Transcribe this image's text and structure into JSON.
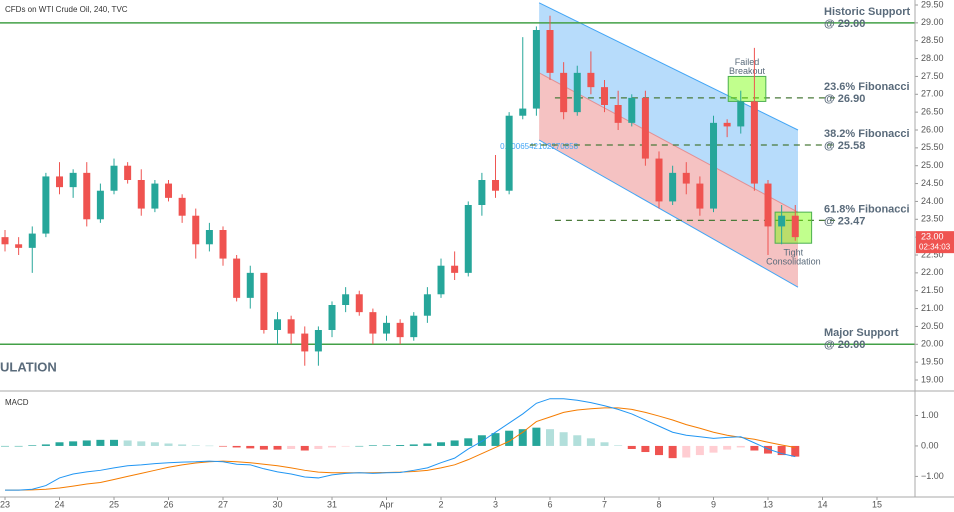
{
  "chart_data": [
    {
      "type": "candlestick",
      "title": "CFDs on WTI Crude Oil, 240, TVC",
      "x": [
        0,
        0.25,
        0.5,
        0.75,
        1,
        1.25,
        1.5,
        1.75,
        2,
        2.25,
        2.5,
        2.75,
        3,
        3.25,
        3.5,
        3.75,
        4,
        4.25,
        4.5,
        4.75,
        5,
        5.25,
        5.5,
        5.75,
        6,
        6.25,
        6.5,
        6.75,
        7,
        7.25,
        7.5,
        7.75,
        8,
        8.25,
        8.5,
        8.75,
        9,
        9.25,
        9.5,
        9.75,
        10,
        10.25,
        10.5,
        10.75,
        11,
        11.25,
        11.5,
        11.75,
        12,
        12.25,
        12.5,
        12.75,
        13,
        13.25,
        13.5,
        13.75,
        14,
        14.25,
        14.5
      ],
      "open": [
        23.0,
        22.8,
        22.7,
        23.1,
        24.7,
        24.4,
        24.8,
        23.5,
        24.3,
        25.0,
        24.6,
        23.8,
        24.5,
        24.1,
        23.6,
        22.8,
        23.2,
        22.4,
        21.3,
        22.0,
        20.4,
        20.7,
        20.3,
        19.8,
        20.4,
        21.1,
        21.4,
        20.9,
        20.3,
        20.6,
        20.2,
        20.8,
        21.4,
        22.2,
        22.0,
        23.9,
        24.6,
        24.3,
        26.4,
        26.6,
        28.8,
        27.6,
        26.5,
        27.6,
        27.2,
        26.7,
        26.2,
        26.9,
        25.2,
        24.0,
        24.8,
        24.5,
        23.8,
        26.2,
        26.1,
        26.8,
        24.5,
        23.3,
        23.6
      ],
      "high": [
        23.2,
        23.0,
        23.3,
        24.8,
        25.1,
        24.9,
        25.1,
        24.5,
        25.2,
        25.1,
        24.9,
        24.6,
        24.6,
        24.2,
        23.8,
        23.4,
        23.3,
        22.5,
        22.2,
        22.0,
        20.9,
        20.8,
        20.5,
        20.5,
        21.2,
        21.6,
        21.5,
        21.0,
        20.8,
        20.7,
        20.9,
        21.6,
        22.4,
        22.6,
        24.0,
        24.8,
        25.3,
        26.5,
        28.6,
        28.9,
        29.2,
        27.9,
        27.8,
        28.2,
        27.4,
        27.1,
        27.0,
        27.1,
        25.4,
        25.0,
        25.1,
        24.7,
        26.4,
        26.3,
        27.1,
        28.3,
        24.6,
        23.9,
        23.9
      ],
      "low": [
        22.6,
        22.5,
        22.0,
        23.0,
        24.2,
        24.1,
        23.3,
        23.4,
        24.2,
        24.5,
        23.6,
        23.7,
        24.0,
        23.4,
        22.4,
        22.6,
        22.2,
        21.2,
        21.0,
        20.3,
        20.0,
        20.0,
        19.4,
        19.4,
        20.2,
        20.9,
        20.8,
        20.0,
        20.1,
        20.0,
        20.1,
        20.6,
        21.3,
        21.8,
        21.9,
        23.6,
        24.1,
        24.2,
        26.3,
        26.4,
        27.4,
        26.3,
        26.4,
        27.0,
        26.5,
        26.0,
        26.1,
        25.0,
        23.8,
        23.9,
        24.2,
        23.6,
        23.7,
        25.8,
        25.9,
        24.3,
        22.5,
        22.8,
        22.9
      ],
      "close": [
        22.8,
        22.7,
        23.1,
        24.7,
        24.4,
        24.8,
        23.5,
        24.3,
        25.0,
        24.6,
        23.8,
        24.5,
        24.1,
        23.6,
        22.8,
        23.2,
        22.4,
        21.3,
        22.0,
        20.4,
        20.7,
        20.3,
        19.8,
        20.4,
        21.1,
        21.4,
        20.9,
        20.3,
        20.6,
        20.2,
        20.8,
        21.4,
        22.2,
        22.0,
        23.9,
        24.6,
        24.3,
        26.4,
        26.6,
        28.8,
        27.6,
        26.5,
        27.6,
        27.2,
        26.7,
        26.2,
        26.9,
        25.2,
        24.0,
        24.8,
        24.5,
        23.8,
        26.2,
        26.1,
        26.8,
        24.5,
        23.3,
        23.6,
        23.0
      ],
      "up_color": "#26a69a",
      "down_color": "#ef5350",
      "xlim": [
        -0.092,
        16.697
      ],
      "xticks": [
        {
          "value": 0,
          "label": "23"
        },
        {
          "value": 1,
          "label": "24"
        },
        {
          "value": 2,
          "label": "25"
        },
        {
          "value": 3,
          "label": "26"
        },
        {
          "value": 4,
          "label": "27"
        },
        {
          "value": 5,
          "label": "30"
        },
        {
          "value": 6,
          "label": "31"
        },
        {
          "value": 7,
          "label": "Apr"
        },
        {
          "value": 8,
          "label": "2"
        },
        {
          "value": 9,
          "label": "3"
        },
        {
          "value": 10,
          "label": "6"
        },
        {
          "value": 11,
          "label": "7"
        },
        {
          "value": 12,
          "label": "8"
        },
        {
          "value": 13,
          "label": "9"
        },
        {
          "value": 14,
          "label": "13"
        },
        {
          "value": 15,
          "label": "14"
        },
        {
          "value": 16,
          "label": "15"
        }
      ],
      "ylim": [
        18.72,
        29.64
      ],
      "yticks": [
        {
          "value": 19,
          "label": "19.00"
        },
        {
          "value": 19.5,
          "label": "19.50"
        },
        {
          "value": 20,
          "label": "20.00"
        },
        {
          "value": 20.5,
          "label": "20.50"
        },
        {
          "value": 21,
          "label": "21.00"
        },
        {
          "value": 21.5,
          "label": "21.50"
        },
        {
          "value": 22,
          "label": "22.00"
        },
        {
          "value": 22.5,
          "label": "22.50"
        },
        {
          "value": 23,
          "label": "23.00"
        },
        {
          "value": 23.5,
          "label": "23.50"
        },
        {
          "value": 24,
          "label": "24.00"
        },
        {
          "value": 24.5,
          "label": "24.50"
        },
        {
          "value": 25,
          "label": "25.00"
        },
        {
          "value": 25.5,
          "label": "25.50"
        },
        {
          "value": 26,
          "label": "26.00"
        },
        {
          "value": 26.5,
          "label": "26.50"
        },
        {
          "value": 27,
          "label": "27.00"
        },
        {
          "value": 27.5,
          "label": "27.50"
        },
        {
          "value": 28,
          "label": "28.00"
        },
        {
          "value": 28.5,
          "label": "28.50"
        },
        {
          "value": 29,
          "label": "29.00"
        },
        {
          "value": 29.5,
          "label": "29.50"
        }
      ],
      "levels": [
        {
          "name": "Historic Support",
          "label": "@ 29.00",
          "value": 29.0,
          "style": "solid",
          "color": "#43a047"
        },
        {
          "name": "23.6% Fibonacci",
          "label": "@ 26.90",
          "value": 26.9,
          "style": "dashed",
          "color": "#4a7a3a",
          "xrange": [
            10.09,
            15.23
          ]
        },
        {
          "name": "38.2% Fibonacci",
          "label": "@ 25.58",
          "value": 25.58,
          "style": "dashed",
          "color": "#4a7a3a",
          "xrange": [
            9.63,
            15.23
          ]
        },
        {
          "name": "61.8% Fibonacci",
          "label": "@ 23.47",
          "value": 23.47,
          "style": "dashed",
          "color": "#4a7a3a",
          "xrange": [
            10.09,
            15.23
          ]
        },
        {
          "name": "Major Support",
          "label": "@ 20.00",
          "value": 20.0,
          "style": "solid",
          "color": "#43a047"
        }
      ],
      "channel": {
        "x": [
          9.8,
          14.55
        ],
        "upper": [
          29.56,
          26.0
        ],
        "middle": [
          27.6,
          23.7
        ],
        "lower": [
          25.72,
          21.6
        ],
        "upper_fill": "rgba(144,202,249,0.65)",
        "lower_fill": "rgba(239,154,154,0.6)",
        "line_color": "#42a5f5",
        "label": "0.0006542102270858"
      },
      "boxes": [
        {
          "x": [
            13.27,
            13.96
          ],
          "y": [
            26.8,
            27.5
          ],
          "label": [
            "Failed",
            "Breakout"
          ],
          "label_side": "above"
        },
        {
          "x": [
            14.13,
            14.8
          ],
          "y": [
            22.83,
            23.7
          ],
          "label": [
            "Tight",
            "Consolidation"
          ],
          "label_side": "below"
        }
      ],
      "price_tag": {
        "value": 23.0,
        "label": "23.00",
        "time": "02:34:03",
        "color": "#ef5350"
      },
      "side_text": "ULATION"
    },
    {
      "type": "macd",
      "title": "MACD",
      "histogram": [
        0,
        0,
        0.02,
        0.05,
        0.12,
        0.15,
        0.18,
        0.2,
        0.2,
        0.18,
        0.15,
        0.12,
        0.08,
        0.05,
        0.02,
        0.01,
        -0.02,
        -0.05,
        -0.08,
        -0.12,
        -0.12,
        -0.1,
        -0.15,
        -0.1,
        -0.05,
        -0.02,
        0,
        0.02,
        0.02,
        0.03,
        0.05,
        0.08,
        0.12,
        0.18,
        0.25,
        0.35,
        0.42,
        0.5,
        0.55,
        0.6,
        0.55,
        0.45,
        0.35,
        0.25,
        0.12,
        0.02,
        -0.1,
        -0.2,
        -0.3,
        -0.4,
        -0.38,
        -0.3,
        -0.22,
        -0.12,
        -0.05,
        -0.15,
        -0.25,
        -0.3,
        -0.35
      ],
      "macd": [
        -1.45,
        -1.45,
        -1.42,
        -1.3,
        -1.05,
        -0.92,
        -0.85,
        -0.8,
        -0.72,
        -0.65,
        -0.62,
        -0.58,
        -0.55,
        -0.53,
        -0.52,
        -0.5,
        -0.52,
        -0.6,
        -0.62,
        -0.75,
        -0.85,
        -0.92,
        -1.02,
        -1.05,
        -0.95,
        -0.9,
        -0.88,
        -0.9,
        -0.88,
        -0.87,
        -0.8,
        -0.72,
        -0.55,
        -0.4,
        -0.1,
        0.15,
        0.45,
        0.75,
        1.05,
        1.4,
        1.55,
        1.55,
        1.5,
        1.42,
        1.32,
        1.2,
        1.05,
        0.85,
        0.65,
        0.45,
        0.35,
        0.3,
        0.25,
        0.28,
        0.3,
        0.1,
        -0.1,
        -0.25,
        -0.35
      ],
      "signal": [
        -1.45,
        -1.45,
        -1.44,
        -1.42,
        -1.38,
        -1.32,
        -1.25,
        -1.2,
        -1.1,
        -1.0,
        -0.9,
        -0.8,
        -0.7,
        -0.62,
        -0.56,
        -0.52,
        -0.5,
        -0.52,
        -0.55,
        -0.6,
        -0.65,
        -0.72,
        -0.8,
        -0.86,
        -0.88,
        -0.88,
        -0.88,
        -0.88,
        -0.87,
        -0.86,
        -0.84,
        -0.8,
        -0.72,
        -0.62,
        -0.45,
        -0.25,
        -0.05,
        0.15,
        0.45,
        0.8,
        0.95,
        1.1,
        1.18,
        1.22,
        1.25,
        1.25,
        1.2,
        1.1,
        0.98,
        0.85,
        0.7,
        0.58,
        0.45,
        0.35,
        0.28,
        0.22,
        0.12,
        0.03,
        -0.05
      ],
      "macd_color": "#2196f3",
      "signal_color": "#f57c00",
      "hist_colors": {
        "up_grow": "#26a69a",
        "up_fall": "#b2dfdb",
        "down_grow": "#ef5350",
        "down_fall": "#ffcdd2"
      },
      "ylim": [
        -1.61,
        1.77
      ],
      "yticks": [
        {
          "value": 1,
          "label": "1.00"
        },
        {
          "value": 0,
          "label": "0.00"
        },
        {
          "value": -1,
          "label": "−1.00"
        }
      ]
    }
  ]
}
